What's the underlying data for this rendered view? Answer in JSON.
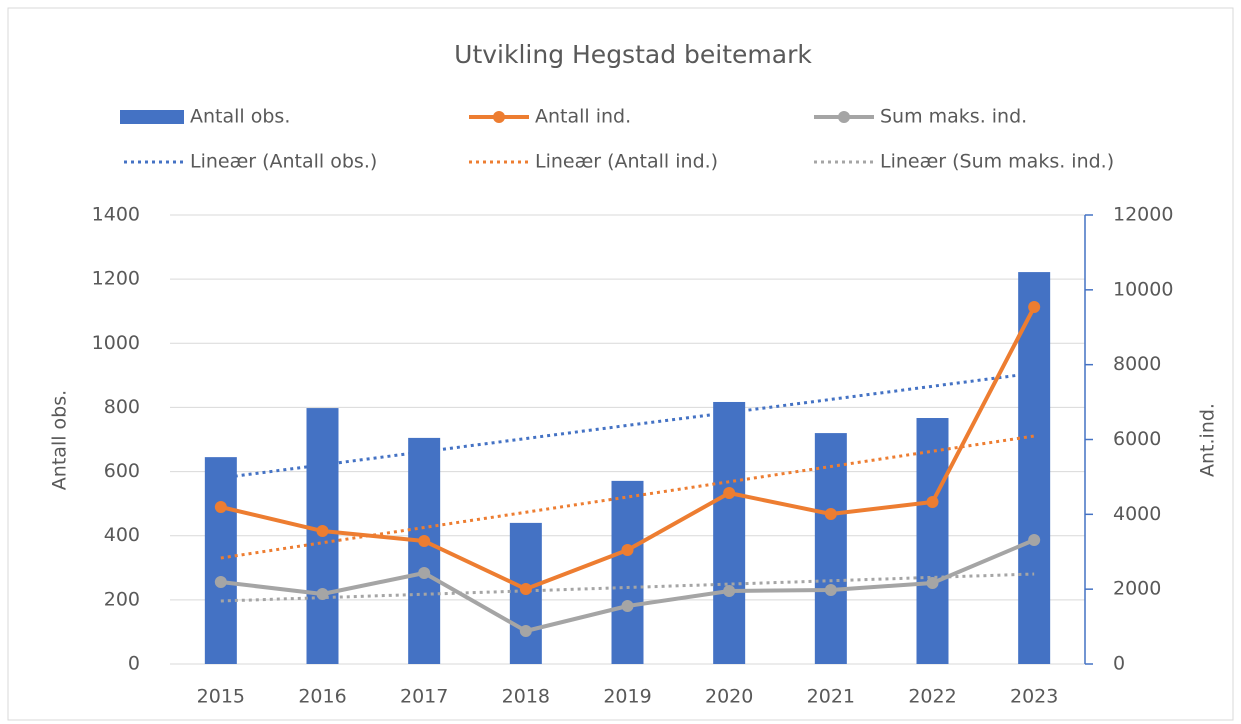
{
  "chart_data": {
    "type": "combo",
    "title": "Utvikling Hegstad beitemark",
    "categories": [
      "2015",
      "2016",
      "2017",
      "2018",
      "2019",
      "2020",
      "2021",
      "2022",
      "2023"
    ],
    "series": [
      {
        "name": "Antall obs.",
        "type": "bar",
        "color": "#4472c4",
        "values": [
          645,
          798,
          705,
          440,
          571,
          817,
          720,
          767,
          1222
        ]
      },
      {
        "name": "Antall ind.",
        "type": "line",
        "axis": "y2",
        "color": "#ed7d31",
        "values": [
          4196,
          3554,
          3287,
          2004,
          3047,
          4570,
          4009,
          4329,
          9540
        ]
      },
      {
        "name": "Sum maks. ind.",
        "type": "line",
        "axis": "y2",
        "color": "#a5a5a5",
        "values": [
          2191,
          1871,
          2432,
          882,
          1550,
          1951,
          1978,
          2165,
          3314
        ]
      },
      {
        "name": "Lineær (Antall obs.)",
        "type": "trend",
        "color": "#4472c4",
        "values": [
          580,
          621,
          662,
          703,
          744,
          784,
          825,
          866,
          907
        ]
      },
      {
        "name": "Lineær (Antall ind.)",
        "type": "trend",
        "axis": "y2",
        "color": "#ed7d31",
        "values": [
          2833,
          3241,
          3648,
          4056,
          4463,
          4871,
          5278,
          5686,
          6093
        ]
      },
      {
        "name": "Lineær (Sum maks. ind.)",
        "type": "trend",
        "axis": "y2",
        "color": "#a5a5a5",
        "values": [
          1684,
          1774,
          1864,
          1954,
          2045,
          2135,
          2225,
          2315,
          2405
        ]
      }
    ],
    "ylabel": "Antall obs.",
    "y2label": "Ant.ind.",
    "ylim": [
      0,
      1400
    ],
    "yticks": [
      0,
      200,
      400,
      600,
      800,
      1000,
      1200,
      1400
    ],
    "y2lim": [
      0,
      12000
    ],
    "y2ticks": [
      0,
      2000,
      4000,
      6000,
      8000,
      10000,
      12000
    ],
    "legend": "top"
  }
}
